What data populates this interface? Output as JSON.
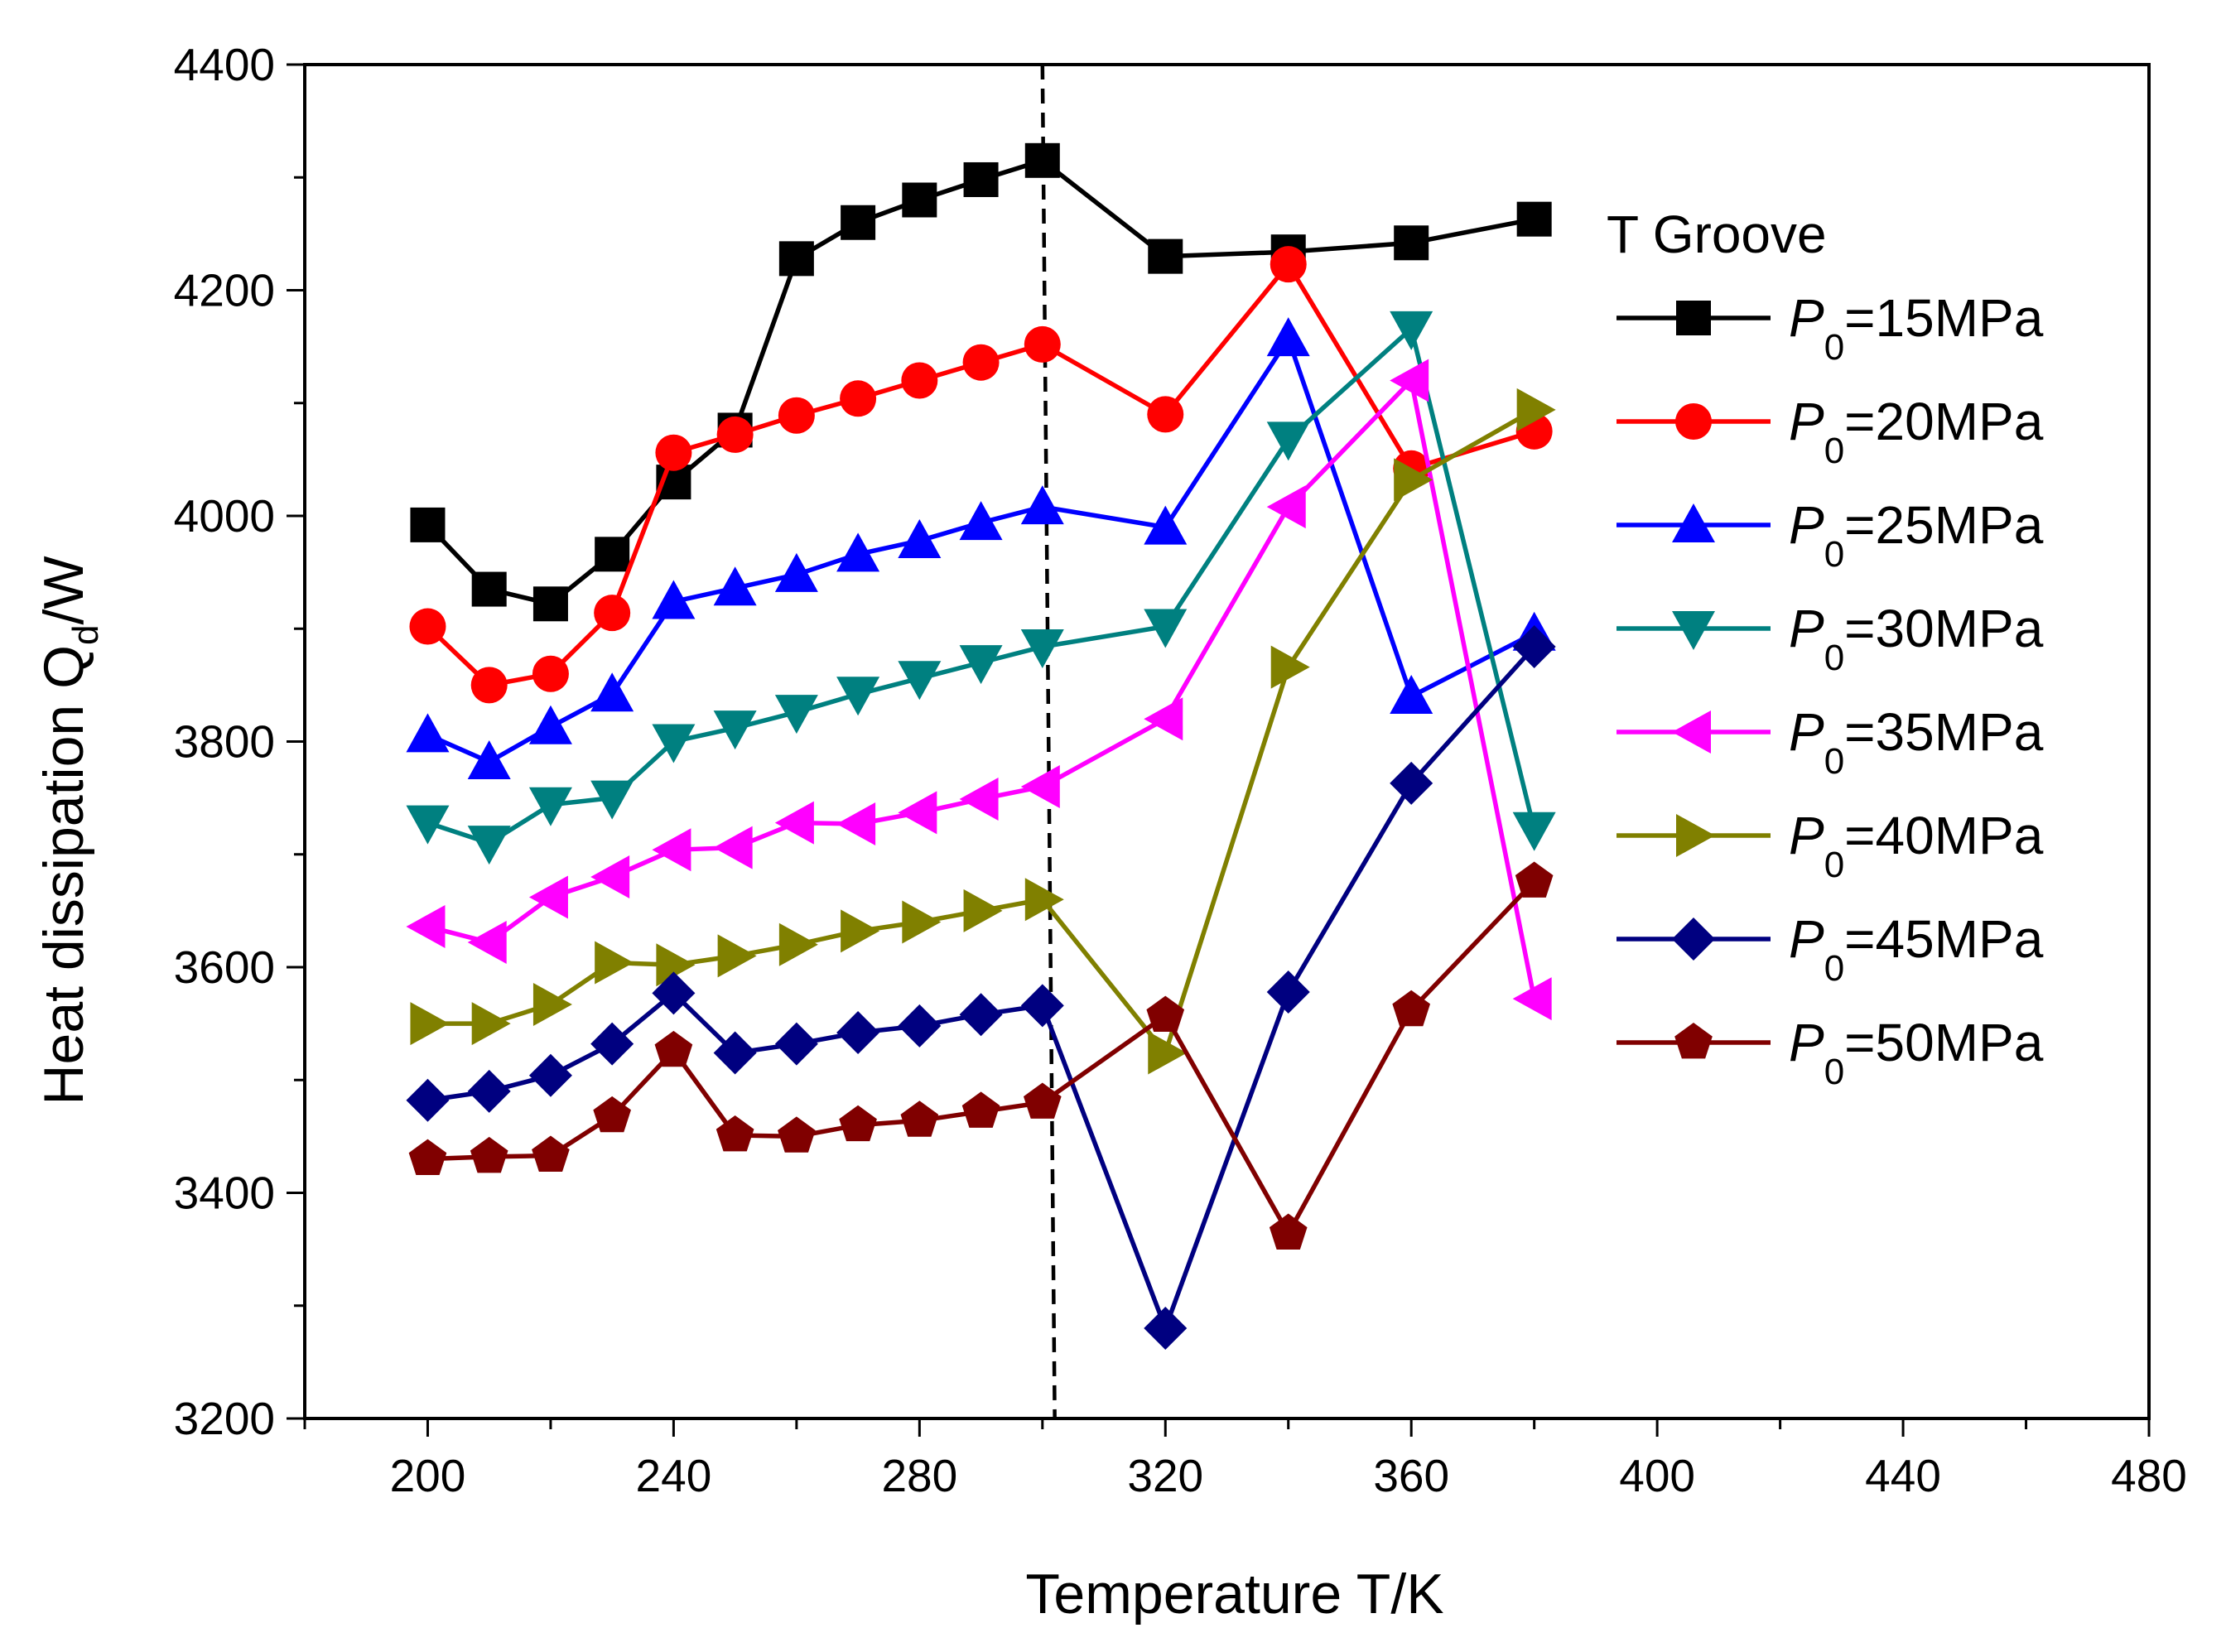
{
  "chart_data": {
    "type": "line",
    "title": "",
    "xlabel": "Temperature T/K",
    "ylabel_main": "Heat dissipation Q",
    "ylabel_sub": "d",
    "ylabel_tail": "/W",
    "xlim": [
      180,
      480
    ],
    "ylim": [
      3200,
      4400
    ],
    "xticks": [
      200,
      240,
      280,
      320,
      360,
      400,
      440,
      480
    ],
    "yticks": [
      3200,
      3400,
      3600,
      3800,
      4000,
      4200,
      4400
    ],
    "xminor_step": 20,
    "yminor_step": 100,
    "reference_line": {
      "x_top": 300,
      "x_bottom": 302,
      "style": "dashed"
    },
    "legend": {
      "title": "T Groove",
      "location": "right"
    },
    "x": [
      200,
      210,
      220,
      230,
      240,
      250,
      260,
      270,
      280,
      290,
      300,
      320,
      340,
      360,
      380
    ],
    "series": [
      {
        "name": "P0=15MPa",
        "label_prefix": "P",
        "label_sub": "0",
        "label_suffix": "=15MPa",
        "color": "#000000",
        "marker": "square",
        "values": [
          3992,
          3935,
          3922,
          3966,
          4030,
          4076,
          4228,
          4260,
          4280,
          4298,
          4315,
          4230,
          4234,
          4242,
          4263
        ]
      },
      {
        "name": "P0=20MPa",
        "label_prefix": "P",
        "label_sub": "0",
        "label_suffix": "=20MPa",
        "color": "#ff0000",
        "marker": "circle",
        "values": [
          3902,
          3850,
          3860,
          3914,
          4056,
          4072,
          4089,
          4104,
          4120,
          4136,
          4152,
          4090,
          4223,
          4042,
          4075
        ]
      },
      {
        "name": "P0=25MPa",
        "label_prefix": "P",
        "label_sub": "0",
        "label_suffix": "=25MPa",
        "color": "#0000ff",
        "marker": "triangle-up",
        "values": [
          3806,
          3782,
          3813,
          3842,
          3924,
          3936,
          3948,
          3966,
          3978,
          3994,
          4008,
          3990,
          4157,
          3840,
          3896
        ]
      },
      {
        "name": "P0=30MPa",
        "label_prefix": "P",
        "label_sub": "0",
        "label_suffix": "=30MPa",
        "color": "#008080",
        "marker": "triangle-down",
        "values": [
          3728,
          3710,
          3744,
          3750,
          3800,
          3812,
          3826,
          3842,
          3856,
          3870,
          3884,
          3902,
          4068,
          4166,
          3722
        ]
      },
      {
        "name": "P0=35MPa",
        "label_prefix": "P",
        "label_sub": "0",
        "label_suffix": "=35MPa",
        "color": "#ff00ff",
        "marker": "triangle-left",
        "values": [
          3636,
          3622,
          3662,
          3680,
          3704,
          3706,
          3728,
          3727,
          3737,
          3749,
          3760,
          3820,
          4008,
          4120,
          3572
        ]
      },
      {
        "name": "P0=40MPa",
        "label_prefix": "P",
        "label_sub": "0",
        "label_suffix": "=40MPa",
        "color": "#808000",
        "marker": "triangle-right",
        "values": [
          3550,
          3550,
          3567,
          3604,
          3602,
          3610,
          3620,
          3632,
          3640,
          3650,
          3660,
          3524,
          3866,
          4032,
          4094
        ]
      },
      {
        "name": "P0=45MPa",
        "label_prefix": "P",
        "label_sub": "0",
        "label_suffix": "=45MPa",
        "color": "#000080",
        "marker": "diamond",
        "values": [
          3482,
          3490,
          3504,
          3532,
          3577,
          3524,
          3532,
          3542,
          3548,
          3558,
          3566,
          3280,
          3578,
          3763,
          3884
        ]
      },
      {
        "name": "P0=50MPa",
        "label_prefix": "P",
        "label_sub": "0",
        "label_suffix": "=50MPa",
        "color": "#800000",
        "marker": "pentagon",
        "values": [
          3430,
          3432,
          3433,
          3468,
          3526,
          3451,
          3450,
          3460,
          3464,
          3472,
          3480,
          3557,
          3364,
          3562,
          3676
        ]
      }
    ]
  }
}
